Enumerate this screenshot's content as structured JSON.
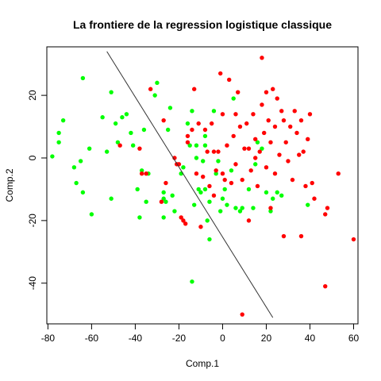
{
  "chart_data": {
    "type": "scatter",
    "title": "La frontiere de la regression logistique classique",
    "xlabel": "Comp.1",
    "ylabel": "Comp.2",
    "xlim": [
      -80.5,
      62
    ],
    "ylim": [
      -53,
      35.5
    ],
    "xticks": [
      -80,
      -60,
      -40,
      -20,
      0,
      20,
      40,
      60
    ],
    "yticks": [
      -40,
      -20,
      0,
      20
    ],
    "colors": {
      "green": "#00ff00",
      "red": "#ff0000",
      "line": "#333333",
      "axis": "#000000"
    },
    "grid": false,
    "legend": "none",
    "boundary": {
      "x": [
        -53,
        23
      ],
      "y": [
        34,
        -51
      ]
    },
    "series": [
      {
        "color": "green",
        "points": [
          [
            -78,
            0.5
          ],
          [
            -75,
            8
          ],
          [
            -75,
            5
          ],
          [
            -73,
            12
          ],
          [
            -68,
            -3
          ],
          [
            -67,
            -8
          ],
          [
            -65,
            -1
          ],
          [
            -64,
            25.5
          ],
          [
            -64,
            -11
          ],
          [
            -61,
            3
          ],
          [
            -60,
            -18
          ],
          [
            -55,
            13
          ],
          [
            -53,
            2
          ],
          [
            -51,
            21
          ],
          [
            -51,
            -13
          ],
          [
            -49,
            11
          ],
          [
            -48,
            5
          ],
          [
            -46,
            13
          ],
          [
            -44,
            14
          ],
          [
            -42,
            8
          ],
          [
            -41,
            4
          ],
          [
            -39,
            -10
          ],
          [
            -38,
            -19
          ],
          [
            -37,
            -4
          ],
          [
            -36,
            9
          ],
          [
            -35,
            -14
          ],
          [
            -34,
            -5
          ],
          [
            -31,
            20
          ],
          [
            -30,
            24
          ],
          [
            -27,
            -11
          ],
          [
            -27,
            -13
          ],
          [
            -27,
            -19
          ],
          [
            -26,
            -14
          ],
          [
            -25,
            9
          ],
          [
            -24,
            16
          ],
          [
            -23,
            -12
          ],
          [
            -22,
            -17
          ],
          [
            -19,
            -5
          ],
          [
            -18,
            -3
          ],
          [
            -16,
            11
          ],
          [
            -15,
            4
          ],
          [
            -14,
            15
          ],
          [
            -14,
            -39.5
          ],
          [
            -13,
            -15
          ],
          [
            -12,
            4
          ],
          [
            -12,
            0
          ],
          [
            -11,
            -10
          ],
          [
            -10,
            -11
          ],
          [
            -9,
            -1
          ],
          [
            -8,
            7
          ],
          [
            -8,
            4
          ],
          [
            -8,
            -10
          ],
          [
            -7,
            -20
          ],
          [
            -6,
            -14
          ],
          [
            -6,
            -26
          ],
          [
            -4,
            15
          ],
          [
            -3,
            -5
          ],
          [
            -2,
            -1
          ],
          [
            -1,
            -17
          ],
          [
            0,
            -13
          ],
          [
            1,
            -10
          ],
          [
            2,
            -15
          ],
          [
            4,
            -4
          ],
          [
            5,
            19
          ],
          [
            6,
            -16
          ],
          [
            8,
            -17
          ],
          [
            9,
            -16
          ],
          [
            12,
            -10
          ],
          [
            14,
            -16
          ],
          [
            15,
            -2
          ],
          [
            16,
            5
          ],
          [
            18,
            3
          ],
          [
            20,
            -11
          ],
          [
            22,
            -17
          ],
          [
            23,
            -13
          ],
          [
            25,
            -11
          ],
          [
            27,
            -12
          ],
          [
            39,
            -15
          ]
        ]
      },
      {
        "color": "red",
        "points": [
          [
            -47,
            4
          ],
          [
            -38,
            3
          ],
          [
            -37,
            -5
          ],
          [
            -35,
            -5
          ],
          [
            -33,
            22
          ],
          [
            -28,
            -14
          ],
          [
            -27,
            12
          ],
          [
            -26,
            -8
          ],
          [
            -22,
            0
          ],
          [
            -21,
            -2
          ],
          [
            -20,
            -2
          ],
          [
            -19,
            -19
          ],
          [
            -18,
            -20
          ],
          [
            -17,
            -21
          ],
          [
            -16,
            7
          ],
          [
            -16,
            5
          ],
          [
            -14,
            9
          ],
          [
            -13,
            22
          ],
          [
            -12,
            -5
          ],
          [
            -11,
            11
          ],
          [
            -10,
            -22
          ],
          [
            -9,
            -6
          ],
          [
            -8,
            9
          ],
          [
            -7,
            2
          ],
          [
            -6,
            -9
          ],
          [
            -5,
            11
          ],
          [
            -4,
            2
          ],
          [
            -3,
            -4
          ],
          [
            -2,
            2
          ],
          [
            -1,
            27
          ],
          [
            0,
            14
          ],
          [
            0,
            -5
          ],
          [
            1,
            -7
          ],
          [
            2,
            4
          ],
          [
            3,
            25
          ],
          [
            4,
            -8
          ],
          [
            5,
            7
          ],
          [
            6,
            -2
          ],
          [
            7,
            21
          ],
          [
            8,
            10
          ],
          [
            9,
            -50
          ],
          [
            9,
            -7
          ],
          [
            10,
            3
          ],
          [
            11,
            11
          ],
          [
            12,
            -20
          ],
          [
            13,
            -4
          ],
          [
            14,
            14
          ],
          [
            15,
            6
          ],
          [
            16,
            -9
          ],
          [
            17,
            2
          ],
          [
            18,
            32
          ],
          [
            18,
            17
          ],
          [
            19,
            8
          ],
          [
            20,
            -3
          ],
          [
            21,
            12
          ],
          [
            22,
            5
          ],
          [
            23,
            22
          ],
          [
            24,
            10
          ],
          [
            24,
            -5
          ],
          [
            25,
            19
          ],
          [
            26,
            1
          ],
          [
            27,
            15
          ],
          [
            28,
            -25
          ],
          [
            28,
            12
          ],
          [
            29,
            5
          ],
          [
            30,
            -1
          ],
          [
            31,
            10
          ],
          [
            32,
            -7
          ],
          [
            33,
            15
          ],
          [
            34,
            8
          ],
          [
            35,
            1
          ],
          [
            36,
            -25
          ],
          [
            36,
            12
          ],
          [
            37,
            2
          ],
          [
            38,
            -9
          ],
          [
            39,
            6
          ],
          [
            40,
            14
          ],
          [
            41,
            -8
          ],
          [
            42,
            -13
          ],
          [
            47,
            -41
          ],
          [
            47,
            -18
          ],
          [
            48,
            -16
          ],
          [
            53,
            -5
          ],
          [
            60,
            -26
          ],
          [
            22,
            -16
          ],
          [
            20,
            21
          ],
          [
            15,
            0
          ],
          [
            12,
            3
          ],
          [
            6,
            14
          ],
          [
            -4,
            -12
          ]
        ]
      }
    ]
  }
}
